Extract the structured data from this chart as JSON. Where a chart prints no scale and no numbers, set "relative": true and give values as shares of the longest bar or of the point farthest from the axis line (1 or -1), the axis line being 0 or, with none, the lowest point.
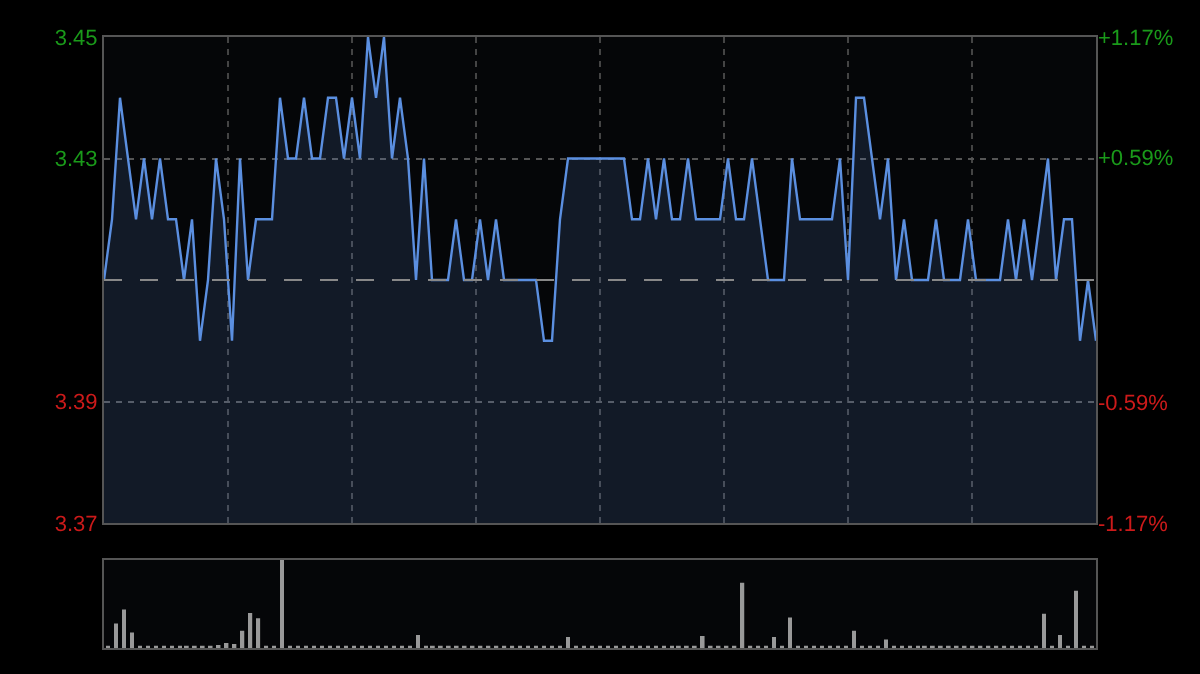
{
  "chart_data": [
    {
      "type": "area",
      "categories": [
        null,
        null,
        null,
        null,
        null,
        null,
        null,
        null,
        null,
        null,
        null,
        null,
        null,
        null,
        null,
        null,
        null,
        null,
        null,
        null,
        null,
        null,
        null,
        null,
        null,
        null,
        null,
        null,
        null,
        null,
        null,
        null,
        null,
        null,
        null,
        null,
        null,
        null,
        null,
        null,
        null,
        null,
        null,
        null,
        null,
        null,
        null,
        null,
        null,
        null,
        null,
        null,
        null,
        null,
        null,
        null,
        null,
        null,
        null,
        null,
        null,
        null,
        null,
        null,
        null,
        null,
        null,
        null,
        null,
        null,
        null,
        null,
        null,
        null,
        null,
        null,
        null,
        null,
        null,
        null,
        null,
        null,
        null,
        null,
        null,
        null,
        null,
        null,
        null,
        null,
        null,
        null,
        null,
        null,
        null,
        null,
        null,
        null,
        null,
        null,
        null,
        null,
        null,
        null,
        null,
        null,
        null,
        null,
        null,
        null,
        null,
        null,
        null,
        null,
        null,
        null,
        null,
        null,
        null,
        null,
        null,
        null,
        null,
        null,
        null
      ],
      "series": [
        {
          "color": "#5b8fe0",
          "values": [
            3.41,
            3.42,
            3.44,
            3.43,
            3.42,
            3.43,
            3.42,
            3.43,
            3.42,
            3.42,
            3.41,
            3.42,
            3.4,
            3.41,
            3.43,
            3.42,
            3.4,
            3.43,
            3.41,
            3.42,
            3.42,
            3.42,
            3.44,
            3.43,
            3.43,
            3.44,
            3.43,
            3.43,
            3.44,
            3.44,
            3.43,
            3.44,
            3.43,
            3.45,
            3.44,
            3.45,
            3.43,
            3.44,
            3.43,
            3.41,
            3.43,
            3.41,
            3.41,
            3.41,
            3.42,
            3.41,
            3.41,
            3.42,
            3.41,
            3.42,
            3.41,
            3.41,
            3.41,
            3.41,
            3.41,
            3.4,
            3.4,
            3.42,
            3.43,
            3.43,
            3.43,
            3.43,
            3.43,
            3.43,
            3.43,
            3.43,
            3.42,
            3.42,
            3.43,
            3.42,
            3.43,
            3.42,
            3.42,
            3.43,
            3.42,
            3.42,
            3.42,
            3.42,
            3.43,
            3.42,
            3.42,
            3.43,
            3.42,
            3.41,
            3.41,
            3.41,
            3.43,
            3.42,
            3.42,
            3.42,
            3.42,
            3.42,
            3.43,
            3.41,
            3.44,
            3.44,
            3.43,
            3.42,
            3.43,
            3.41,
            3.42,
            3.41,
            3.41,
            3.41,
            3.42,
            3.41,
            3.41,
            3.41,
            3.42,
            3.41,
            3.41,
            3.41,
            3.41,
            3.42,
            3.41,
            3.42,
            3.41,
            3.42,
            3.43,
            3.41,
            3.42,
            3.42,
            3.4,
            3.41,
            3.4
          ]
        }
      ],
      "ylim": [
        3.37,
        3.45
      ],
      "yticks": [
        3.37,
        3.39,
        3.43,
        3.45
      ],
      "y2lim": [
        -1.17,
        1.17
      ],
      "y2ticks": [
        {
          "value": -1.17,
          "label": "-1.17%"
        },
        {
          "value": -0.59,
          "label": "-0.59%"
        },
        {
          "value": 0.59,
          "label": "+0.59%"
        },
        {
          "value": 1.17,
          "label": "+1.17%"
        }
      ],
      "ref_lines": [
        {
          "axis": "y",
          "value": 3.41,
          "label": null,
          "color": "#888888",
          "line_style": "dashed"
        }
      ],
      "grid": true
    },
    {
      "type": "bar",
      "relative": true,
      "categories": [
        null,
        null,
        null,
        null,
        null,
        null,
        null,
        null,
        null,
        null,
        null,
        null,
        null,
        null,
        null,
        null,
        null,
        null,
        null,
        null,
        null,
        null,
        null,
        null,
        null,
        null,
        null,
        null,
        null,
        null,
        null,
        null,
        null,
        null,
        null,
        null,
        null,
        null,
        null,
        null,
        null,
        null,
        null,
        null,
        null,
        null,
        null,
        null,
        null,
        null,
        null,
        null,
        null,
        null,
        null,
        null,
        null,
        null,
        null,
        null,
        null,
        null,
        null,
        null,
        null,
        null,
        null,
        null,
        null,
        null,
        null,
        null,
        null,
        null,
        null,
        null,
        null,
        null,
        null,
        null,
        null,
        null,
        null,
        null,
        null,
        null,
        null,
        null,
        null,
        null,
        null,
        null,
        null,
        null,
        null,
        null,
        null,
        null,
        null,
        null,
        null,
        null,
        null,
        null,
        null,
        null,
        null,
        null,
        null,
        null,
        null,
        null,
        null,
        null,
        null,
        null,
        null,
        null,
        null,
        null,
        null,
        null,
        null,
        null,
        null
      ],
      "series": [
        {
          "color": "#999999",
          "values": [
            0.03,
            0.28,
            0.44,
            0.18,
            0.03,
            0.02,
            0.02,
            0.02,
            0.02,
            0.02,
            0.03,
            0.02,
            0.02,
            0.02,
            0.04,
            0.06,
            0.05,
            0.2,
            0.4,
            0.34,
            0.02,
            0.02,
            1,
            0.03,
            0.02,
            0.02,
            0.02,
            0.02,
            0.02,
            0.02,
            0.02,
            0.02,
            0.02,
            0.02,
            0.02,
            0.02,
            0.02,
            0.02,
            0.02,
            0.15,
            0.02,
            0.02,
            0.02,
            0.02,
            0.02,
            0.02,
            0.02,
            0.02,
            0.02,
            0.02,
            0.02,
            0.02,
            0.02,
            0.02,
            0.02,
            0.02,
            0.02,
            0.02,
            0.13,
            0.02,
            0.02,
            0.02,
            0.02,
            0.02,
            0.02,
            0.02,
            0.02,
            0.02,
            0.02,
            0.02,
            0.02,
            0.02,
            0.02,
            0.02,
            0.02,
            0.14,
            0.02,
            0.02,
            0.02,
            0.02,
            0.74,
            0.02,
            0.02,
            0.02,
            0.13,
            0.02,
            0.35,
            0.02,
            0.02,
            0.02,
            0.02,
            0.02,
            0.02,
            0.02,
            0.2,
            0.02,
            0.02,
            0.02,
            0.1,
            0.02,
            0.02,
            0.02,
            0.02,
            0.02,
            0.02,
            0.02,
            0.02,
            0.02,
            0.02,
            0.02,
            0.02,
            0.02,
            0.02,
            0.02,
            0.02,
            0.02,
            0.02,
            0.02,
            0.39,
            0.02,
            0.15,
            0.02,
            0.65,
            0.02,
            0.02
          ]
        }
      ]
    }
  ]
}
